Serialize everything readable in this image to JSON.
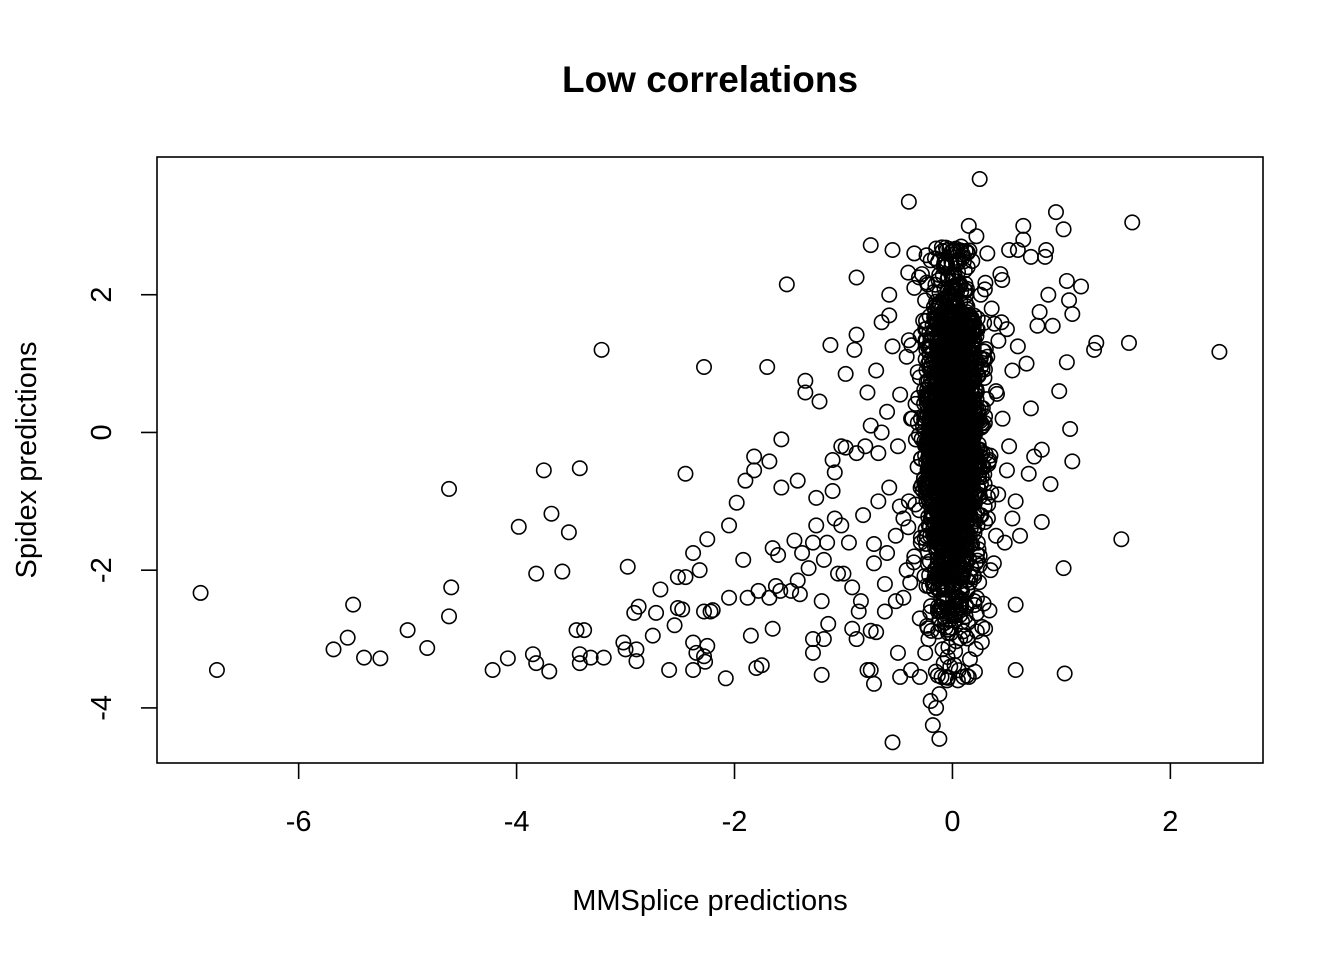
{
  "chart_data": {
    "type": "scatter",
    "title": "Low correlations",
    "xlabel": "MMSplice predictions",
    "ylabel": "Spidex predictions",
    "xlim": [
      -7.3,
      2.85
    ],
    "ylim": [
      -4.8,
      4.0
    ],
    "x_ticks": [
      -6,
      -4,
      -2,
      0,
      2
    ],
    "y_ticks": [
      -4,
      -2,
      0,
      2
    ],
    "x_tick_labels": [
      "-6",
      "-4",
      "-2",
      "0",
      "2"
    ],
    "y_tick_labels": [
      "-4",
      "-2",
      "0",
      "2"
    ],
    "grid": false,
    "legend": "none",
    "marker": "open-circle",
    "color": "#000000",
    "series": [
      {
        "points": [
          [
            -6.9,
            -2.33
          ],
          [
            -6.75,
            -3.45
          ],
          [
            -5.68,
            -3.15
          ],
          [
            -5.55,
            -2.98
          ],
          [
            -5.5,
            -2.5
          ],
          [
            -5.4,
            -3.27
          ],
          [
            -5.25,
            -3.28
          ],
          [
            -5.0,
            -2.87
          ],
          [
            -4.82,
            -3.13
          ],
          [
            -4.62,
            -0.82
          ],
          [
            -4.6,
            -2.25
          ],
          [
            -4.62,
            -2.67
          ],
          [
            -4.22,
            -3.45
          ],
          [
            -4.08,
            -3.28
          ],
          [
            -3.98,
            -1.37
          ],
          [
            -3.85,
            -3.22
          ],
          [
            -3.82,
            -3.35
          ],
          [
            -3.82,
            -2.05
          ],
          [
            -3.75,
            -0.55
          ],
          [
            -3.7,
            -3.47
          ],
          [
            -3.68,
            -1.18
          ],
          [
            -3.58,
            -2.02
          ],
          [
            -3.52,
            -1.45
          ],
          [
            -3.45,
            -2.87
          ],
          [
            -3.42,
            -3.22
          ],
          [
            -3.42,
            -3.35
          ],
          [
            -3.38,
            -2.87
          ],
          [
            -3.32,
            -3.27
          ],
          [
            -3.22,
            1.2
          ],
          [
            -3.2,
            -3.27
          ],
          [
            -3.42,
            -0.52
          ],
          [
            -3.02,
            -3.05
          ],
          [
            -3.0,
            -3.15
          ],
          [
            -2.98,
            -1.95
          ],
          [
            -2.92,
            -2.62
          ],
          [
            -2.9,
            -3.15
          ],
          [
            -2.9,
            -3.32
          ],
          [
            -2.88,
            -2.53
          ],
          [
            -2.75,
            -2.95
          ],
          [
            -2.72,
            -2.62
          ],
          [
            -2.68,
            -2.28
          ],
          [
            -2.6,
            -3.45
          ],
          [
            -2.55,
            -2.8
          ],
          [
            -2.52,
            -2.55
          ],
          [
            -2.52,
            -2.1
          ],
          [
            -2.48,
            -2.57
          ],
          [
            -2.45,
            -2.1
          ],
          [
            -2.45,
            -0.6
          ],
          [
            -2.38,
            -3.05
          ],
          [
            -2.38,
            -1.75
          ],
          [
            -2.38,
            -3.45
          ],
          [
            -2.35,
            -3.2
          ],
          [
            -2.32,
            -2.0
          ],
          [
            -2.28,
            -2.6
          ],
          [
            -2.28,
            -3.25
          ],
          [
            -2.27,
            -3.33
          ],
          [
            -2.25,
            -3.1
          ],
          [
            -2.25,
            -1.55
          ],
          [
            -2.22,
            -2.6
          ],
          [
            -2.2,
            -2.58
          ],
          [
            -2.28,
            0.95
          ],
          [
            -2.08,
            -3.57
          ],
          [
            -2.05,
            -1.35
          ],
          [
            -2.05,
            -2.4
          ],
          [
            -1.98,
            -1.02
          ],
          [
            -1.92,
            -1.85
          ],
          [
            -1.9,
            -0.7
          ],
          [
            -1.88,
            -2.4
          ],
          [
            -1.85,
            -2.95
          ],
          [
            -1.82,
            -0.55
          ],
          [
            -1.82,
            -0.35
          ],
          [
            -1.8,
            -3.42
          ],
          [
            -1.78,
            -2.3
          ],
          [
            -1.75,
            -3.38
          ],
          [
            -1.7,
            0.95
          ],
          [
            -1.68,
            -2.4
          ],
          [
            -1.68,
            -0.42
          ],
          [
            -1.65,
            -2.85
          ],
          [
            -1.65,
            -1.68
          ],
          [
            -1.62,
            -2.23
          ],
          [
            -1.6,
            -1.78
          ],
          [
            -1.58,
            -2.3
          ],
          [
            -1.57,
            -0.1
          ],
          [
            -1.57,
            -0.8
          ],
          [
            -1.52,
            2.15
          ],
          [
            -1.48,
            -2.3
          ],
          [
            -1.45,
            -1.57
          ],
          [
            -1.42,
            -2.15
          ],
          [
            -1.42,
            -0.7
          ],
          [
            -1.4,
            -2.35
          ],
          [
            -1.38,
            -1.75
          ],
          [
            -1.35,
            0.58
          ],
          [
            -1.35,
            0.75
          ],
          [
            -1.32,
            -1.97
          ],
          [
            -1.28,
            -1.6
          ],
          [
            -1.28,
            -3.2
          ],
          [
            -1.28,
            -3.0
          ],
          [
            -1.25,
            -0.95
          ],
          [
            -1.25,
            -1.35
          ],
          [
            -1.22,
            0.45
          ],
          [
            -1.2,
            -3.52
          ],
          [
            -1.2,
            -2.45
          ],
          [
            -1.18,
            -1.85
          ],
          [
            -1.18,
            -3.0
          ],
          [
            -1.15,
            -1.6
          ],
          [
            -1.14,
            -2.78
          ],
          [
            -1.12,
            1.27
          ],
          [
            -1.1,
            -0.4
          ],
          [
            -1.1,
            -0.85
          ],
          [
            -1.08,
            -1.25
          ],
          [
            -1.08,
            -0.58
          ],
          [
            -1.05,
            -2.05
          ],
          [
            -1.02,
            -1.35
          ],
          [
            -1.02,
            -0.2
          ],
          [
            -1.0,
            -2.05
          ],
          [
            -0.98,
            -0.22
          ],
          [
            -0.98,
            0.85
          ],
          [
            -0.95,
            -1.6
          ],
          [
            -0.92,
            -2.25
          ],
          [
            -0.92,
            -2.85
          ],
          [
            -0.9,
            1.2
          ],
          [
            -0.88,
            -0.3
          ],
          [
            -0.88,
            -3.0
          ],
          [
            -0.88,
            1.42
          ],
          [
            -0.86,
            -2.6
          ],
          [
            -0.84,
            -2.45
          ],
          [
            -0.82,
            -1.2
          ],
          [
            -0.8,
            -0.2
          ],
          [
            -0.78,
            0.58
          ],
          [
            -0.78,
            -3.45
          ],
          [
            -0.75,
            -2.88
          ],
          [
            -0.75,
            -3.45
          ],
          [
            -0.72,
            -1.62
          ],
          [
            -0.72,
            -3.65
          ],
          [
            -0.7,
            -2.9
          ],
          [
            -0.68,
            -1.0
          ],
          [
            -0.65,
            0.0
          ],
          [
            -0.62,
            -2.2
          ],
          [
            -0.6,
            -1.75
          ],
          [
            -0.58,
            1.7
          ],
          [
            -0.58,
            2.0
          ],
          [
            -0.55,
            -4.5
          ],
          [
            -0.52,
            -2.45
          ],
          [
            -0.5,
            -3.2
          ],
          [
            -0.48,
            -3.55
          ],
          [
            -0.45,
            -1.25
          ],
          [
            -0.42,
            -2.0
          ],
          [
            -0.4,
            3.35
          ],
          [
            -0.38,
            -3.45
          ],
          [
            -0.35,
            2.6
          ],
          [
            -0.88,
            2.25
          ],
          [
            -0.75,
            2.72
          ],
          [
            -0.55,
            2.65
          ],
          [
            -0.35,
            2.1
          ],
          [
            -0.3,
            -3.55
          ],
          [
            -0.25,
            -3.2
          ],
          [
            -0.2,
            -3.9
          ],
          [
            -0.18,
            -4.25
          ],
          [
            -0.15,
            -4.0
          ],
          [
            -0.12,
            -3.8
          ],
          [
            -0.12,
            -4.45
          ],
          [
            -0.1,
            -3.55
          ],
          [
            -0.08,
            -3.35
          ],
          [
            -0.05,
            -3.6
          ],
          [
            -0.02,
            -3.4
          ],
          [
            0.05,
            -3.6
          ],
          [
            0.1,
            -3.55
          ],
          [
            0.12,
            -2.95
          ],
          [
            0.15,
            -3.55
          ],
          [
            0.15,
            3.0
          ],
          [
            0.2,
            -2.45
          ],
          [
            0.22,
            2.85
          ],
          [
            0.25,
            3.68
          ],
          [
            0.3,
            -2.85
          ],
          [
            0.32,
            2.6
          ],
          [
            0.35,
            -2.0
          ],
          [
            0.4,
            -1.5
          ],
          [
            0.45,
            1.6
          ],
          [
            0.5,
            -0.55
          ],
          [
            0.52,
            2.65
          ],
          [
            0.55,
            -1.25
          ],
          [
            0.58,
            -2.5
          ],
          [
            0.58,
            -3.45
          ],
          [
            0.6,
            2.65
          ],
          [
            0.6,
            1.25
          ],
          [
            0.62,
            -1.5
          ],
          [
            0.65,
            3.0
          ],
          [
            0.65,
            2.8
          ],
          [
            0.68,
            1.0
          ],
          [
            0.7,
            -0.6
          ],
          [
            0.72,
            0.35
          ],
          [
            0.72,
            2.55
          ],
          [
            0.75,
            -0.35
          ],
          [
            0.78,
            1.55
          ],
          [
            0.8,
            1.75
          ],
          [
            0.82,
            -0.25
          ],
          [
            0.82,
            -1.3
          ],
          [
            0.85,
            2.55
          ],
          [
            0.86,
            2.65
          ],
          [
            0.88,
            2.0
          ],
          [
            0.9,
            -0.75
          ],
          [
            0.92,
            1.55
          ],
          [
            0.95,
            3.2
          ],
          [
            0.98,
            0.6
          ],
          [
            1.02,
            2.95
          ],
          [
            1.02,
            -1.97
          ],
          [
            1.03,
            -3.5
          ],
          [
            1.05,
            1.02
          ],
          [
            1.05,
            2.2
          ],
          [
            1.07,
            1.92
          ],
          [
            1.08,
            0.05
          ],
          [
            1.1,
            -0.42
          ],
          [
            1.1,
            1.72
          ],
          [
            1.18,
            2.12
          ],
          [
            1.3,
            1.2
          ],
          [
            1.32,
            1.3
          ],
          [
            1.55,
            -1.55
          ],
          [
            1.62,
            1.3
          ],
          [
            1.65,
            3.05
          ],
          [
            2.45,
            1.17
          ],
          [
            -0.25,
            1.5
          ],
          [
            -0.3,
            0.8
          ],
          [
            -0.32,
            -0.5
          ],
          [
            -0.35,
            -1.8
          ],
          [
            -0.38,
            0.2
          ],
          [
            -0.4,
            -1.0
          ],
          [
            -0.42,
            1.1
          ],
          [
            -0.45,
            -2.4
          ],
          [
            -0.48,
            0.55
          ],
          [
            -0.5,
            -0.2
          ],
          [
            -0.52,
            -1.5
          ],
          [
            -0.55,
            1.25
          ],
          [
            -0.58,
            -0.8
          ],
          [
            -0.6,
            0.3
          ],
          [
            -0.62,
            -2.6
          ],
          [
            -0.65,
            1.6
          ],
          [
            -0.68,
            -0.3
          ],
          [
            -0.7,
            0.9
          ],
          [
            -0.72,
            -1.9
          ],
          [
            -0.75,
            0.1
          ],
          [
            -0.3,
            -2.7
          ],
          [
            -0.28,
            2.3
          ],
          [
            -0.22,
            -3.0
          ],
          [
            -0.2,
            2.5
          ],
          [
            -0.18,
            -2.2
          ],
          [
            -0.15,
            1.9
          ],
          [
            -0.12,
            -1.2
          ],
          [
            -0.1,
            0.6
          ],
          [
            -0.08,
            -0.6
          ],
          [
            -0.05,
            1.3
          ],
          [
            -0.03,
            -1.8
          ],
          [
            0.0,
            0.2
          ],
          [
            0.02,
            2.1
          ],
          [
            0.04,
            -2.6
          ],
          [
            0.06,
            1.0
          ],
          [
            0.08,
            -1.0
          ],
          [
            0.1,
            1.7
          ],
          [
            0.12,
            -0.3
          ],
          [
            0.14,
            2.4
          ],
          [
            0.16,
            -1.5
          ],
          [
            0.18,
            0.8
          ],
          [
            0.2,
            -2.1
          ],
          [
            0.22,
            1.4
          ],
          [
            0.24,
            -0.9
          ],
          [
            0.26,
            2.0
          ],
          [
            0.28,
            0.1
          ],
          [
            0.3,
            -1.3
          ],
          [
            0.32,
            1.1
          ],
          [
            0.34,
            -0.4
          ],
          [
            0.36,
            1.8
          ],
          [
            0.38,
            -1.9
          ],
          [
            0.4,
            0.6
          ],
          [
            0.42,
            -0.9
          ],
          [
            0.44,
            2.3
          ],
          [
            0.46,
            0.2
          ],
          [
            0.48,
            -1.6
          ],
          [
            0.5,
            1.5
          ],
          [
            0.52,
            -0.2
          ],
          [
            0.55,
            0.9
          ],
          [
            0.58,
            -1.0
          ],
          [
            -0.05,
            0.0
          ],
          [
            -0.02,
            0.4
          ],
          [
            0.01,
            -0.4
          ],
          [
            0.03,
            0.8
          ],
          [
            0.05,
            -0.8
          ],
          [
            -0.06,
            1.2
          ],
          [
            -0.04,
            -1.2
          ],
          [
            0.02,
            1.6
          ],
          [
            0.04,
            -1.6
          ],
          [
            -0.01,
            2.0
          ],
          [
            0.0,
            -2.0
          ],
          [
            -0.08,
            2.4
          ],
          [
            0.06,
            -2.4
          ],
          [
            -0.1,
            -2.8
          ],
          [
            0.08,
            2.7
          ],
          [
            -0.12,
            0.0
          ],
          [
            0.12,
            0.0
          ],
          [
            -0.15,
            0.5
          ],
          [
            0.15,
            -0.5
          ],
          [
            -0.18,
            -1.0
          ]
        ]
      }
    ],
    "dense_cluster": {
      "center_x": 0.0,
      "center_y": -0.1,
      "spread_x": 0.12,
      "spread_y": 1.15,
      "count": 2500
    }
  }
}
